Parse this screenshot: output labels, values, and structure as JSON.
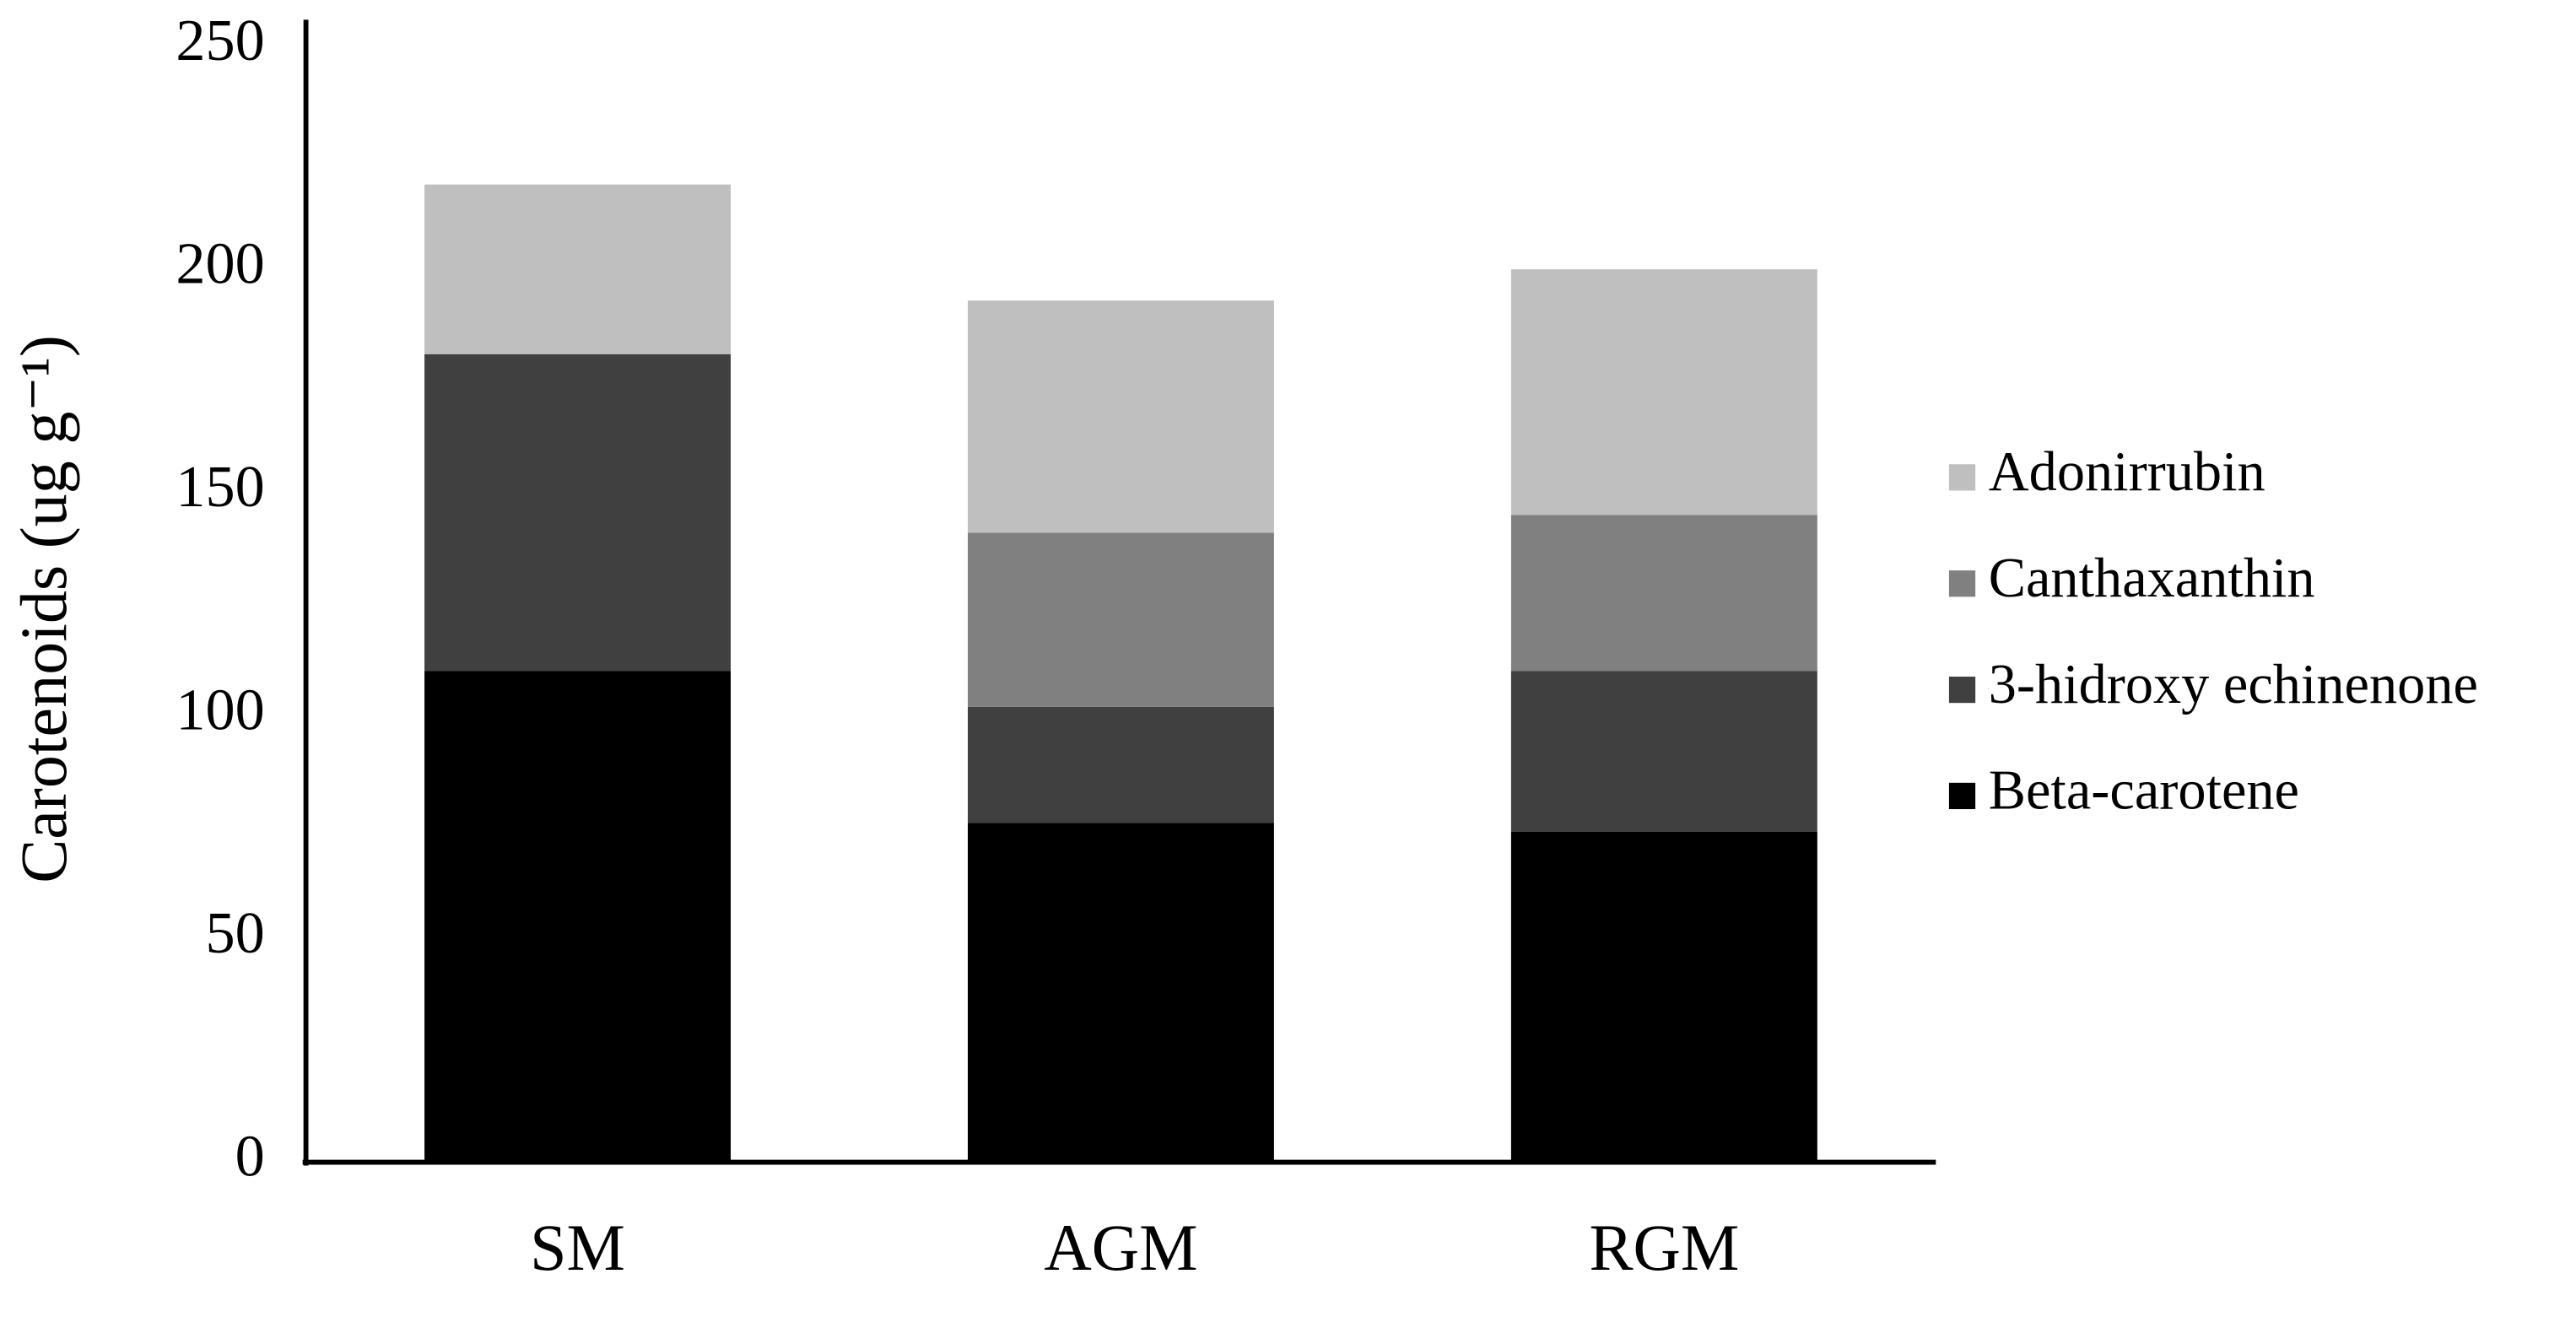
{
  "chart_data": {
    "type": "stacked_bar",
    "ylabel": "Carotenoids (ug g⁻¹)",
    "categories": [
      "SM",
      "AGM",
      "RGM"
    ],
    "series": [
      {
        "name": "Beta-carotene",
        "color": "#000000",
        "values": [
          110,
          76,
          74
        ]
      },
      {
        "name": "3-hidroxy echinenone",
        "color": "#404040",
        "values": [
          71,
          26,
          36
        ]
      },
      {
        "name": "Canthaxanthin",
        "color": "#808080",
        "values": [
          0,
          39,
          35
        ]
      },
      {
        "name": "Adonirrubin",
        "color": "#bfbfbf",
        "values": [
          38,
          52,
          55
        ]
      }
    ],
    "ylim": [
      0,
      250
    ],
    "yticks": [
      0,
      50,
      100,
      150,
      200,
      250
    ],
    "grid": false,
    "legend": "right"
  }
}
